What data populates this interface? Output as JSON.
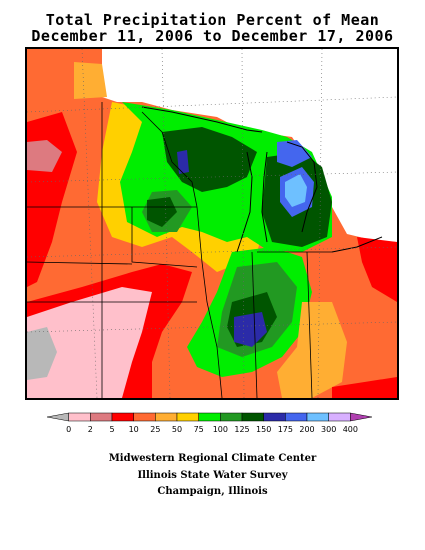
{
  "title_line1": "Total Precipitation Percent of Mean",
  "title_line2": "December 11, 2006 to December 17, 2006",
  "legend": {
    "ticks": [
      "0",
      "2",
      "5",
      "10",
      "25",
      "50",
      "75",
      "100",
      "125",
      "150",
      "175",
      "200",
      "300",
      "400"
    ],
    "colors": [
      "#b8b8b8",
      "#ffc0cb",
      "#dd7a80",
      "#ff0000",
      "#ff6a33",
      "#ffae33",
      "#ffd000",
      "#00ee00",
      "#229922",
      "#005500",
      "#2b2ba8",
      "#4466ee",
      "#6ec0ff",
      "#d8b0ff",
      "#b040b0"
    ]
  },
  "credits": {
    "line1": "Midwestern Regional Climate Center",
    "line2": "Illinois State Water Survey",
    "line3": "Champaign, Illinois"
  }
}
